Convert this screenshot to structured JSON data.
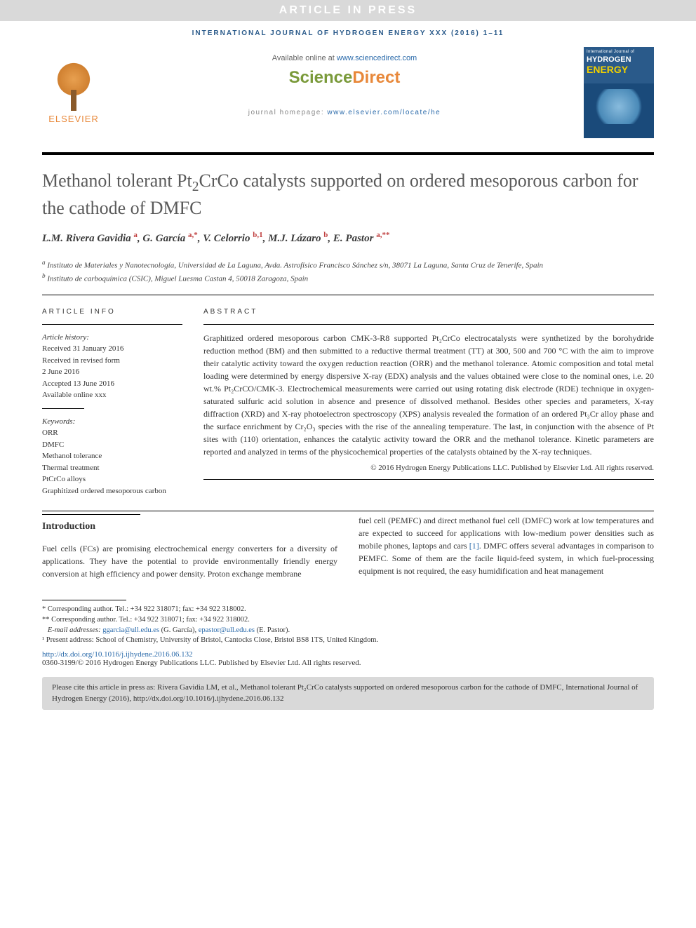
{
  "banner": "ARTICLE IN PRESS",
  "journal_header": "INTERNATIONAL JOURNAL OF HYDROGEN ENERGY XXX (2016) 1–11",
  "elsevier": "ELSEVIER",
  "available_prefix": "Available online at ",
  "available_url": "www.sciencedirect.com",
  "sd_science": "Science",
  "sd_direct": "Direct",
  "homepage_prefix": "journal homepage: ",
  "homepage_url": "www.elsevier.com/locate/he",
  "cover": {
    "line1": "International Journal of",
    "hydrogen": "HYDROGEN",
    "energy": "ENERGY"
  },
  "title_part1": "Methanol tolerant Pt",
  "title_sub": "2",
  "title_part2": "CrCo catalysts supported on ordered mesoporous carbon for the cathode of DMFC",
  "authors_html": "L.M. Rivera Gavidia <sup>a</sup>, G. García <sup>a,*</sup>, V. Celorrio <sup>b,1</sup>, M.J. Lázaro <sup>b</sup>, E. Pastor <sup>a,**</sup>",
  "affiliations": {
    "a": "Instituto de Materiales y Nanotecnología, Universidad de La Laguna, Avda. Astrofísico Francisco Sánchez s/n, 38071 La Laguna, Santa Cruz de Tenerife, Spain",
    "b": "Instituto de carboquímica (CSIC), Miguel Luesma Castan 4, 50018 Zaragoza, Spain"
  },
  "info_heading": "ARTICLE INFO",
  "history_label": "Article history:",
  "history": [
    "Received 31 January 2016",
    "Received in revised form",
    "2 June 2016",
    "Accepted 13 June 2016",
    "Available online xxx"
  ],
  "keywords_label": "Keywords:",
  "keywords": [
    "ORR",
    "DMFC",
    "Methanol tolerance",
    "Thermal treatment",
    "PtCrCo alloys",
    "Graphitized ordered mesoporous carbon"
  ],
  "abstract_heading": "ABSTRACT",
  "abstract": "Graphitized ordered mesoporous carbon CMK-3-R8 supported Pt₂CrCo electrocatalysts were synthetized by the borohydride reduction method (BM) and then submitted to a reductive thermal treatment (TT) at 300, 500 and 700 °C with the aim to improve their catalytic activity toward the oxygen reduction reaction (ORR) and the methanol tolerance. Atomic composition and total metal loading were determined by energy dispersive X-ray (EDX) analysis and the values obtained were close to the nominal ones, i.e. 20 wt.% Pt₂CrCO/CMK-3. Electrochemical measurements were carried out using rotating disk electrode (RDE) technique in oxygen-saturated sulfuric acid solution in absence and presence of dissolved methanol. Besides other species and parameters, X-ray diffraction (XRD) and X-ray photoelectron spectroscopy (XPS) analysis revealed the formation of an ordered Pt₃Cr alloy phase and the surface enrichment by Cr₂O₃ species with the rise of the annealing temperature. The last, in conjunction with the absence of Pt sites with (110) orientation, enhances the catalytic activity toward the ORR and the methanol tolerance. Kinetic parameters are reported and analyzed in terms of the physicochemical properties of the catalysts obtained by the X-ray techniques.",
  "abstract_copyright": "© 2016 Hydrogen Energy Publications LLC. Published by Elsevier Ltd. All rights reserved.",
  "intro_heading": "Introduction",
  "intro_col1": "Fuel cells (FCs) are promising electrochemical energy converters for a diversity of applications. They have the potential to provide environmentally friendly energy conversion at high efficiency and power density. Proton exchange membrane",
  "intro_col2_part1": "fuel cell (PEMFC) and direct methanol fuel cell (DMFC) work at low temperatures and are expected to succeed for applications with low-medium power densities such as mobile phones, laptops and cars ",
  "intro_ref1": "[1]",
  "intro_col2_part2": ". DMFC offers several advantages in comparison to PEMFC. Some of them are the facile liquid-feed system, in which fuel-processing equipment is not required, the easy humidification and heat management",
  "footnotes": {
    "corr1": "* Corresponding author. Tel.: +34 922 318071; fax: +34 922 318002.",
    "corr2": "** Corresponding author. Tel.: +34 922 318071; fax: +34 922 318002.",
    "email_label": "E-mail addresses: ",
    "email1": "ggarcia@ull.edu.es",
    "email1_name": " (G. García), ",
    "email2": "epastor@ull.edu.es",
    "email2_name": " (E. Pastor).",
    "present": "¹ Present address: School of Chemistry, University of Bristol, Cantocks Close, Bristol BS8 1TS, United Kingdom."
  },
  "doi_url": "http://dx.doi.org/10.1016/j.ijhydene.2016.06.132",
  "issn_line": "0360-3199/© 2016 Hydrogen Energy Publications LLC. Published by Elsevier Ltd. All rights reserved.",
  "cite_box": "Please cite this article in press as: Rivera Gavidia LM, et al., Methanol tolerant Pt₂CrCo catalysts supported on ordered mesoporous carbon for the cathode of DMFC, International Journal of Hydrogen Energy (2016), http://dx.doi.org/10.1016/j.ijhydene.2016.06.132",
  "colors": {
    "banner_bg": "#d9d9d9",
    "journal_blue": "#2a5a8a",
    "elsevier_orange": "#e8883a",
    "sd_green": "#7a9a3a",
    "link": "#2a6aaa",
    "sup_red": "#c04040"
  }
}
